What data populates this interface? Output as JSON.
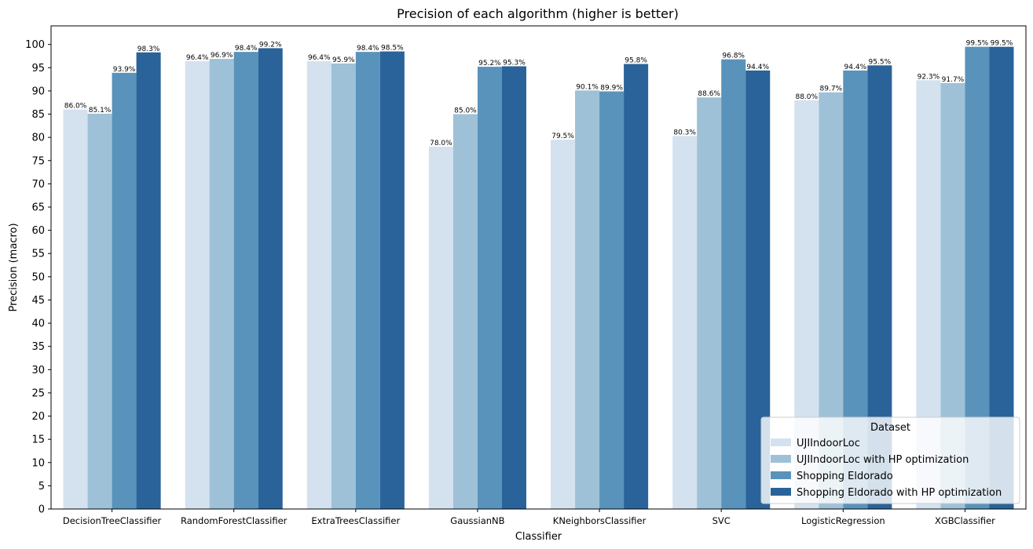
{
  "chart_data": {
    "type": "bar",
    "title": "Precision of each algorithm (higher is better)",
    "xlabel": "Classifier",
    "ylabel": "Precision (macro)",
    "ylim": [
      0,
      104
    ],
    "yticks": [
      0,
      5,
      10,
      15,
      20,
      25,
      30,
      35,
      40,
      45,
      50,
      55,
      60,
      65,
      70,
      75,
      80,
      85,
      90,
      95,
      100
    ],
    "grid": false,
    "legend": {
      "title": "Dataset",
      "position": "lower-right"
    },
    "categories": [
      "DecisionTreeClassifier",
      "RandomForestClassifier",
      "ExtraTreesClassifier",
      "GaussianNB",
      "KNeighborsClassifier",
      "SVC",
      "LogisticRegression",
      "XGBClassifier"
    ],
    "series": [
      {
        "name": "UJIIndoorLoc",
        "color": "#d4e2f0",
        "values": [
          86.0,
          96.4,
          96.4,
          78.0,
          79.5,
          80.3,
          88.0,
          92.3
        ]
      },
      {
        "name": "UJIIndoorLoc with HP optimization",
        "color": "#9fc1d7",
        "values": [
          85.1,
          96.9,
          95.9,
          85.0,
          90.1,
          88.6,
          89.7,
          91.7
        ]
      },
      {
        "name": "Shopping Eldorado",
        "color": "#5993bb",
        "values": [
          93.9,
          98.4,
          98.4,
          95.2,
          89.9,
          96.8,
          94.4,
          99.5
        ]
      },
      {
        "name": "Shopping Eldorado with HP optimization",
        "color": "#2a6399",
        "values": [
          98.3,
          99.2,
          98.5,
          95.3,
          95.8,
          94.4,
          95.5,
          99.5
        ]
      }
    ],
    "data_labels": [
      [
        "86.0%",
        "96.4%",
        "96.4%",
        "78.0%",
        "79.5%",
        "80.3%",
        "88.0%",
        "92.3%"
      ],
      [
        "85.1%",
        "96.9%",
        "95.9%",
        "85.0%",
        "90.1%",
        "88.6%",
        "89.7%",
        "91.7%"
      ],
      [
        "93.9%",
        "98.4%",
        "98.4%",
        "95.2%",
        "89.9%",
        "96.8%",
        "94.4%",
        "99.5%"
      ],
      [
        "98.3%",
        "99.2%",
        "98.5%",
        "95.3%",
        "95.8%",
        "94.4%",
        "95.5%",
        "99.5%"
      ]
    ]
  }
}
